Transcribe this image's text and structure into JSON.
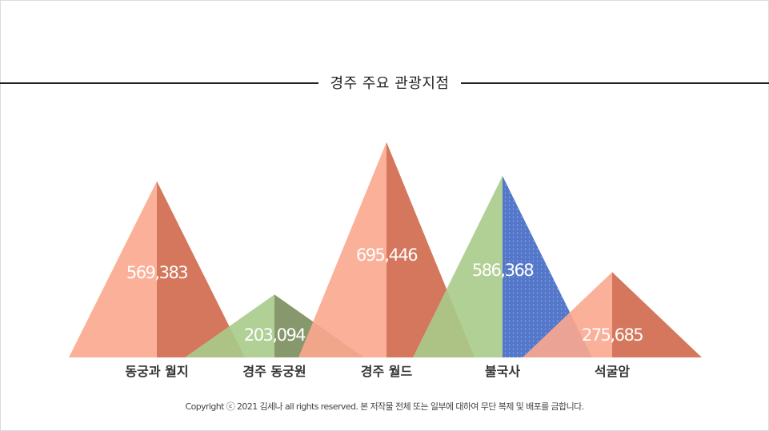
{
  "chart_data": {
    "type": "bar",
    "title": "경주 주요 관광지점",
    "categories": [
      "동궁과 월지",
      "경주 동궁원",
      "경주 월드",
      "불국사",
      "석굴암"
    ],
    "values": [
      569383,
      203094,
      695446,
      586368,
      275685
    ],
    "value_labels": [
      "569,383",
      "203,094",
      "695,446",
      "586,368",
      "275,685"
    ],
    "ylim": [
      0,
      700000
    ],
    "grid": false,
    "legend": "none",
    "colors": [
      {
        "left": "#fba78e",
        "right": "#d0684a"
      },
      {
        "left": "#a9cb8a",
        "right": "#7a8d5d"
      },
      {
        "left": "#fba78e",
        "right": "#d0684a"
      },
      {
        "left": "#a9cb8a",
        "right": "#4168c4"
      },
      {
        "left": "#fba78e",
        "right": "#d0684a"
      }
    ]
  },
  "footer": {
    "copyright": "Copyright ⓒ 2021 김세나 all rights reserved. 본 저작물 전체 또는 일부에 대하여 무단 복제 및 배포를 금합니다."
  }
}
